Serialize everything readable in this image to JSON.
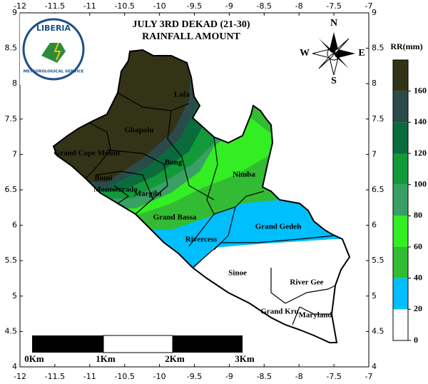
{
  "map": {
    "title": [
      "JULY 3RD DEKAD (21-30)",
      "RAINFALL AMOUNT"
    ],
    "axes": {
      "xlim": [
        -12,
        -7
      ],
      "ylim": [
        4,
        9
      ],
      "xticks": [
        -12,
        -11.5,
        -11,
        -10.5,
        -10,
        -9.5,
        -9,
        -8.5,
        -8,
        -7.5,
        -7
      ],
      "yticks": [
        4,
        4.5,
        5,
        5.5,
        6,
        6.5,
        7,
        7.5,
        8,
        8.5,
        9
      ]
    },
    "colorbar": {
      "label": "RR(mm)",
      "lim": [
        0,
        180
      ],
      "ticks": [
        0,
        20,
        40,
        60,
        80,
        100,
        120,
        140,
        160
      ],
      "colors": [
        "#ffffff",
        "#00bfff",
        "#33bb33",
        "#33ee22",
        "#3a9f64",
        "#11993a",
        "#0a6b3c",
        "#2b4a4a",
        "#333317"
      ]
    },
    "counties": [
      "Lofa",
      "Gbapolu",
      "Grand Cape Mount",
      "Bong",
      "Bomi",
      "Montserrado",
      "Margibi",
      "Nimba",
      "Grand Bassa",
      "Grand Gedeh",
      "Rivercess",
      "Sinoe",
      "River Gee",
      "Grand Kru",
      "Maryland"
    ],
    "compass": {
      "north": "N",
      "east": "E",
      "south": "S",
      "west": "W"
    },
    "logo": {
      "name": "LIBERIA",
      "subtitle": "METEOROLOGICAL SERVICE"
    },
    "scale_bar": [
      "0Km",
      "1Km",
      "2Km",
      "3Km"
    ]
  }
}
